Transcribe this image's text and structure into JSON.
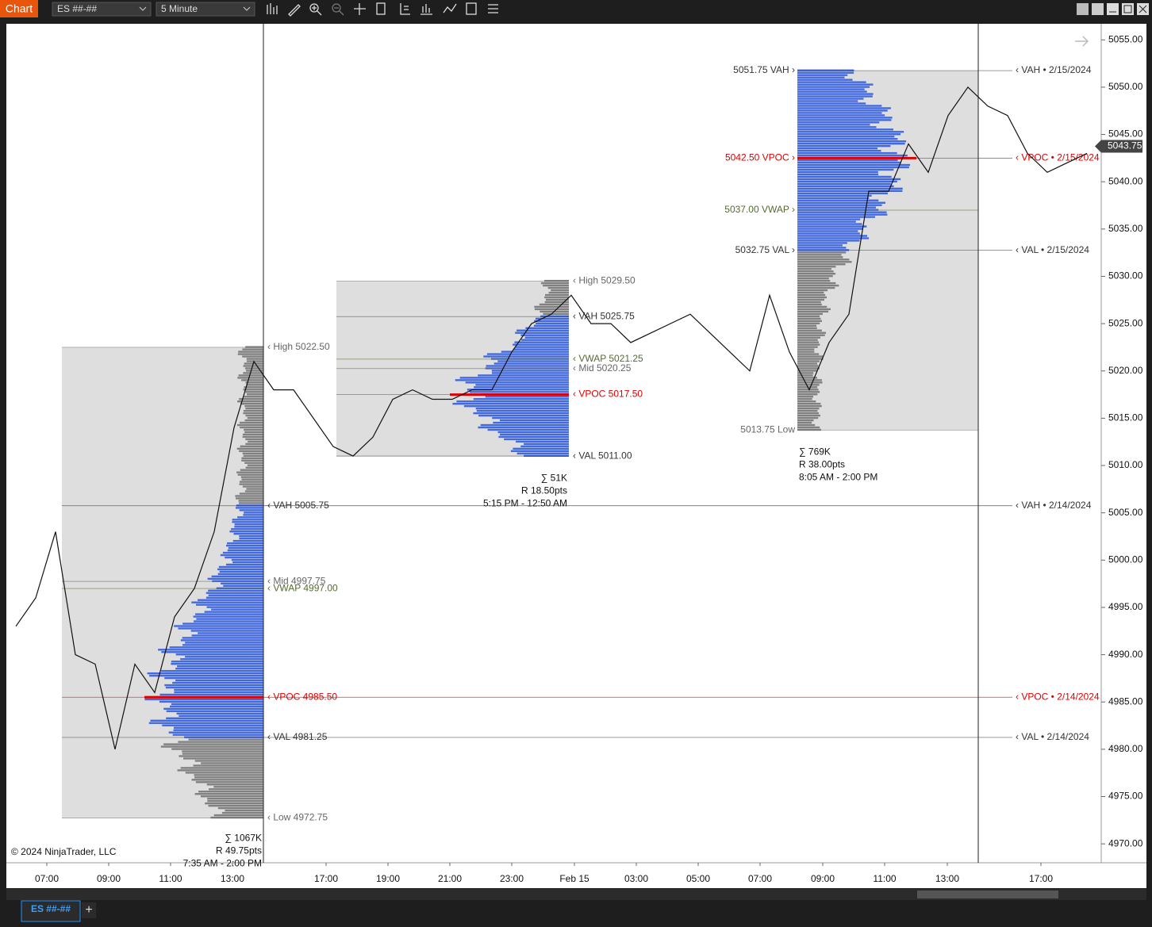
{
  "toolbar": {
    "app_button": "Chart",
    "instrument": "ES ##-##",
    "interval": "5 Minute"
  },
  "price_axis": {
    "ylim": [
      4968,
      5056.7
    ],
    "ticks": [
      {
        "value": 4970,
        "label": "4970.00"
      },
      {
        "value": 4975,
        "label": "4975.00"
      },
      {
        "value": 4980,
        "label": "4980.00"
      },
      {
        "value": 4985,
        "label": "4985.00"
      },
      {
        "value": 4990,
        "label": "4990.00"
      },
      {
        "value": 4995,
        "label": "4995.00"
      },
      {
        "value": 5000,
        "label": "5000.00"
      },
      {
        "value": 5005,
        "label": "5005.00"
      },
      {
        "value": 5010,
        "label": "5010.00"
      },
      {
        "value": 5015,
        "label": "5015.00"
      },
      {
        "value": 5020,
        "label": "5020.00"
      },
      {
        "value": 5025,
        "label": "5025.00"
      },
      {
        "value": 5030,
        "label": "5030.00"
      },
      {
        "value": 5035,
        "label": "5035.00"
      },
      {
        "value": 5040,
        "label": "5040.00"
      },
      {
        "value": 5045,
        "label": "5045.00"
      },
      {
        "value": 5050,
        "label": "5050.00"
      },
      {
        "value": 5055,
        "label": "5055.00"
      }
    ],
    "last_price": {
      "value": 5043.75,
      "label": "5043.75"
    }
  },
  "time_axis": {
    "labels": [
      "07:00",
      "09:00",
      "11:00",
      "13:00",
      "17:00",
      "19:00",
      "21:00",
      "23:00",
      "Feb 15",
      "03:00",
      "05:00",
      "07:00",
      "09:00",
      "11:00",
      "13:00",
      "17:00"
    ]
  },
  "price_samples": [
    4993,
    4996,
    5003,
    4990,
    4989,
    4980,
    4989,
    4986,
    4994,
    4997,
    5003,
    5014,
    5021,
    5018,
    5018,
    5015,
    5012,
    5011,
    5013,
    5017,
    5018,
    5017,
    5017,
    5018,
    5018,
    5022,
    5025,
    5026,
    5028,
    5025,
    5025,
    5023,
    5024,
    5025,
    5026,
    5024,
    5022,
    5020,
    5028,
    5022,
    5018,
    5023,
    5026,
    5039,
    5039,
    5044,
    5041,
    5047,
    5050,
    5048,
    5047,
    5043,
    5041,
    5042,
    5043
  ],
  "profiles": [
    {
      "side": "right",
      "box": [
        4972.75,
        5022.5
      ],
      "value_area": [
        4981.25,
        5005.75
      ],
      "poc": 4985.5,
      "levels": [
        {
          "label": "‹ High 5022.50",
          "price": 5022.5,
          "color": "#666666"
        },
        {
          "label": "‹ VAH 5005.75",
          "price": 5005.75,
          "color": "#333333"
        },
        {
          "label": "‹ Mid 4997.75",
          "price": 4997.75,
          "color": "#666666"
        },
        {
          "label": "‹ VWAP 4997.00",
          "price": 4997,
          "color": "#556b2f"
        },
        {
          "label": "‹ VPOC 4985.50",
          "price": 4985.5,
          "color": "#e00000"
        },
        {
          "label": "‹ VAL 4981.25",
          "price": 4981.25,
          "color": "#333333"
        },
        {
          "label": "‹ Low 4972.75",
          "price": 4972.75,
          "color": "#666666"
        }
      ],
      "stats": [
        "∑ 1067K",
        "R 49.75pts",
        "7:35 AM - 2:00 PM"
      ]
    },
    {
      "side": "right",
      "box": [
        5011,
        5029.5
      ],
      "value_area": [
        5011,
        5025.75
      ],
      "poc": 5017.5,
      "levels": [
        {
          "label": "‹ High 5029.50",
          "price": 5029.5,
          "color": "#666666"
        },
        {
          "label": "‹ VAH 5025.75",
          "price": 5025.75,
          "color": "#333333"
        },
        {
          "label": "‹ VWAP 5021.25",
          "price": 5021.25,
          "color": "#556b2f"
        },
        {
          "label": "‹ Mid 5020.25",
          "price": 5020.25,
          "color": "#666666"
        },
        {
          "label": "‹ VPOC 5017.50",
          "price": 5017.5,
          "color": "#e00000"
        },
        {
          "label": "‹ VAL 5011.00",
          "price": 5011,
          "color": "#333333"
        }
      ],
      "stats": [
        "∑ 51K",
        "R 18.50pts",
        "5:15 PM - 12:50 AM"
      ]
    },
    {
      "side": "left",
      "box": [
        5013.75,
        5051.75
      ],
      "value_area": [
        5032.75,
        5051.75
      ],
      "poc": 5042.5,
      "levels": [
        {
          "label": "5051.75 VAH ›",
          "price": 5051.75,
          "color": "#333333"
        },
        {
          "label": "5042.50 VPOC ›",
          "price": 5042.5,
          "color": "#e00000"
        },
        {
          "label": "5037.00 VWAP ›",
          "price": 5037,
          "color": "#556b2f"
        },
        {
          "label": "5032.75 VAL ›",
          "price": 5032.75,
          "color": "#333333"
        },
        {
          "label": "5013.75 Low",
          "price": 5013.75,
          "color": "#666666"
        }
      ],
      "stats": [
        "∑ 769K",
        "R 38.00pts",
        "8:05 AM - 2:00 PM"
      ]
    }
  ],
  "extended_levels": [
    {
      "label": "‹ VAH • 2/15/2024",
      "price": 5051.75,
      "color": "#333333"
    },
    {
      "label": "‹ VPOC • 2/15/2024",
      "price": 5042.5,
      "color": "#e00000"
    },
    {
      "label": "‹ VAL • 2/15/2024",
      "price": 5032.75,
      "color": "#333333"
    },
    {
      "label": "‹ VAH • 2/14/2024",
      "price": 5005.75,
      "color": "#333333"
    },
    {
      "label": "‹ VPOC • 2/14/2024",
      "price": 4985.5,
      "color": "#e00000"
    },
    {
      "label": "‹ VAL • 2/14/2024",
      "price": 4981.25,
      "color": "#333333"
    }
  ],
  "copyright": "© 2024 NinjaTrader, LLC",
  "tabs": {
    "active": "ES ##-##",
    "add": "+"
  }
}
